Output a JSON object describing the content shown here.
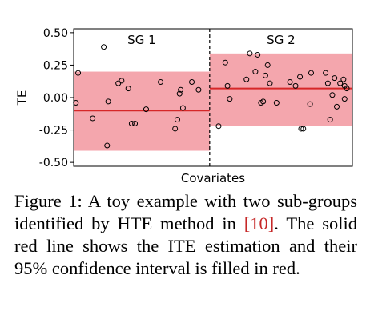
{
  "chart_data": {
    "type": "scatter",
    "xlabel": "Covariates",
    "ylabel": "TE",
    "ylim": [
      -0.53,
      0.53
    ],
    "yticks": [
      -0.5,
      -0.25,
      0.0,
      0.25,
      0.5
    ],
    "ytick_labels": [
      "-0.50",
      "-0.25",
      "0.00",
      "0.25",
      "0.50"
    ],
    "grid": false,
    "groups": [
      {
        "label": "SG 1",
        "estimate": -0.1,
        "ci": [
          -0.41,
          0.2
        ],
        "points": [
          {
            "x": 0.0,
            "y": -0.04
          },
          {
            "x": 0.02,
            "y": 0.19
          },
          {
            "x": 0.15,
            "y": -0.16
          },
          {
            "x": 0.25,
            "y": 0.39
          },
          {
            "x": 0.28,
            "y": -0.37
          },
          {
            "x": 0.29,
            "y": -0.03
          },
          {
            "x": 0.38,
            "y": 0.11
          },
          {
            "x": 0.41,
            "y": 0.13
          },
          {
            "x": 0.47,
            "y": 0.07
          },
          {
            "x": 0.5,
            "y": -0.2
          },
          {
            "x": 0.53,
            "y": -0.2
          },
          {
            "x": 0.63,
            "y": -0.09
          },
          {
            "x": 0.76,
            "y": 0.12
          },
          {
            "x": 0.89,
            "y": -0.24
          },
          {
            "x": 0.91,
            "y": -0.17
          },
          {
            "x": 0.93,
            "y": 0.03
          },
          {
            "x": 0.94,
            "y": 0.06
          },
          {
            "x": 0.96,
            "y": -0.08
          },
          {
            "x": 1.04,
            "y": 0.12
          },
          {
            "x": 1.1,
            "y": 0.06
          }
        ]
      },
      {
        "label": "SG 2",
        "estimate": 0.07,
        "ci": [
          -0.22,
          0.34
        ],
        "points": [
          {
            "x": 1.28,
            "y": -0.22
          },
          {
            "x": 1.34,
            "y": 0.27
          },
          {
            "x": 1.36,
            "y": 0.09
          },
          {
            "x": 1.38,
            "y": -0.01
          },
          {
            "x": 1.53,
            "y": 0.14
          },
          {
            "x": 1.56,
            "y": 0.34
          },
          {
            "x": 1.61,
            "y": 0.2
          },
          {
            "x": 1.63,
            "y": 0.33
          },
          {
            "x": 1.66,
            "y": -0.04
          },
          {
            "x": 1.68,
            "y": -0.03
          },
          {
            "x": 1.7,
            "y": 0.17
          },
          {
            "x": 1.72,
            "y": 0.25
          },
          {
            "x": 1.74,
            "y": 0.11
          },
          {
            "x": 1.8,
            "y": -0.04
          },
          {
            "x": 1.92,
            "y": 0.12
          },
          {
            "x": 1.97,
            "y": 0.09
          },
          {
            "x": 2.01,
            "y": 0.16
          },
          {
            "x": 2.02,
            "y": -0.24
          },
          {
            "x": 2.04,
            "y": -0.24
          },
          {
            "x": 2.1,
            "y": -0.05
          },
          {
            "x": 2.11,
            "y": 0.19
          },
          {
            "x": 2.24,
            "y": 0.19
          },
          {
            "x": 2.26,
            "y": 0.11
          },
          {
            "x": 2.28,
            "y": -0.17
          },
          {
            "x": 2.3,
            "y": 0.02
          },
          {
            "x": 2.32,
            "y": 0.15
          },
          {
            "x": 2.34,
            "y": -0.07
          },
          {
            "x": 2.37,
            "y": 0.11
          },
          {
            "x": 2.4,
            "y": 0.14
          },
          {
            "x": 2.41,
            "y": 0.09
          },
          {
            "x": 2.41,
            "y": -0.01
          },
          {
            "x": 2.43,
            "y": 0.07
          }
        ]
      }
    ],
    "xlim": [
      -0.02,
      2.48
    ],
    "divider_x": 1.2,
    "colors": {
      "estimate_line": "#d62728",
      "ci_fill": "#f4a6ad",
      "point_edge": "#000000",
      "divider": "#000000"
    }
  },
  "caption": {
    "prefix": "Figure 1: A toy example with two sub-groups identified by HTE method in ",
    "citation": "[10]",
    "suffix": ". The solid red line shows the ITE estimation and their 95% confidence interval is filled in red."
  }
}
